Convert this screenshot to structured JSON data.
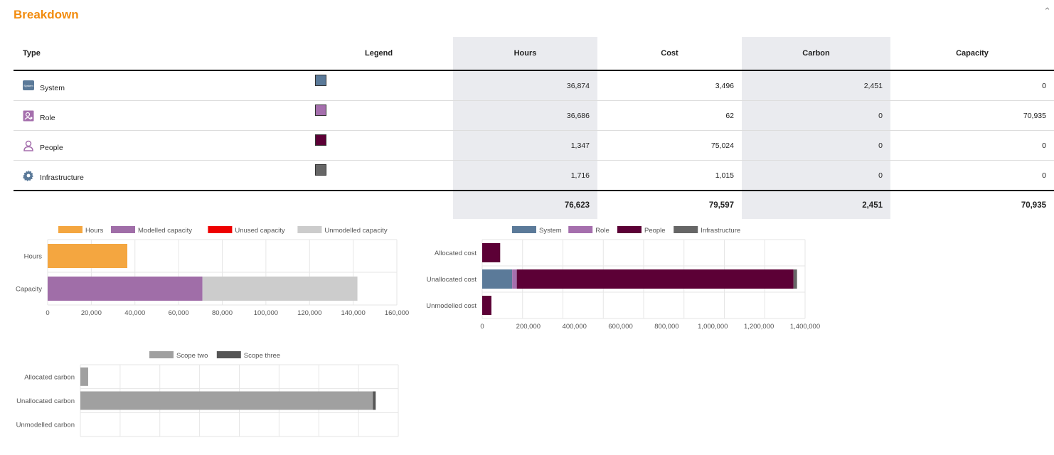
{
  "header": {
    "title": "Breakdown",
    "collapse_icon": "chevron-up-icon"
  },
  "table": {
    "columns": {
      "type": "Type",
      "legend": "Legend",
      "hours": "Hours",
      "cost": "Cost",
      "carbon": "Carbon",
      "capacity": "Capacity"
    },
    "rows": [
      {
        "type": "System",
        "icon": "system-icon",
        "color": "#5b7a99",
        "hours": "36,874",
        "cost": "3,496",
        "carbon": "2,451",
        "capacity": "0"
      },
      {
        "type": "Role",
        "icon": "role-icon",
        "color": "#a56fad",
        "hours": "36,686",
        "cost": "62",
        "carbon": "0",
        "capacity": "70,935"
      },
      {
        "type": "People",
        "icon": "person-icon",
        "color": "#5c0036",
        "hours": "1,347",
        "cost": "75,024",
        "carbon": "0",
        "capacity": "0"
      },
      {
        "type": "Infrastructure",
        "icon": "gear-icon",
        "color": "#666666",
        "hours": "1,716",
        "cost": "1,015",
        "carbon": "0",
        "capacity": "0"
      }
    ],
    "totals": {
      "hours": "76,623",
      "cost": "79,597",
      "carbon": "2,451",
      "capacity": "70,935"
    },
    "system_icon_text": "System"
  },
  "chart_data": [
    {
      "type": "bar",
      "orientation": "horizontal",
      "stacked": true,
      "categories": [
        "Hours",
        "Capacity"
      ],
      "series": [
        {
          "name": "Hours",
          "color": "#f4a640",
          "values": [
            36500,
            0
          ]
        },
        {
          "name": "Modelled capacity",
          "color": "#a06ea8",
          "values": [
            0,
            70935
          ]
        },
        {
          "name": "Unused capacity",
          "color": "#ee0000",
          "values": [
            0,
            0
          ]
        },
        {
          "name": "Unmodelled capacity",
          "color": "#cccccc",
          "values": [
            0,
            71000
          ]
        }
      ],
      "xlim": [
        0,
        160000
      ],
      "xticks": [
        0,
        20000,
        40000,
        60000,
        80000,
        100000,
        120000,
        140000,
        160000
      ],
      "xtick_labels": [
        "0",
        "20,000",
        "40,000",
        "60,000",
        "80,000",
        "100,000",
        "120,000",
        "140,000",
        "160,000"
      ],
      "legend": "top"
    },
    {
      "type": "bar",
      "orientation": "horizontal",
      "stacked": true,
      "categories": [
        "Allocated cost",
        "Unallocated cost",
        "Unmodelled cost"
      ],
      "series": [
        {
          "name": "System",
          "color": "#5b7a99",
          "values": [
            0,
            130000,
            0
          ]
        },
        {
          "name": "Role",
          "color": "#a56fad",
          "values": [
            0,
            20000,
            0
          ]
        },
        {
          "name": "People",
          "color": "#5c0036",
          "values": [
            78000,
            1200000,
            40000
          ]
        },
        {
          "name": "Infrastructure",
          "color": "#666666",
          "values": [
            0,
            15000,
            0
          ]
        }
      ],
      "xlim": [
        0,
        1400000
      ],
      "xticks": [
        0,
        200000,
        400000,
        600000,
        800000,
        1000000,
        1200000,
        1400000
      ],
      "xtick_labels": [
        "0",
        "200,000",
        "400,000",
        "600,000",
        "800,000",
        "1,000,000",
        "1,200,000",
        "1,400,000"
      ],
      "legend": "top"
    },
    {
      "type": "bar",
      "orientation": "horizontal",
      "stacked": true,
      "categories": [
        "Allocated carbon",
        "Unallocated carbon",
        "Unmodelled carbon"
      ],
      "series": [
        {
          "name": "Scope two",
          "color": "#a0a0a0",
          "values": [
            2451,
            92000,
            0
          ]
        },
        {
          "name": "Scope three",
          "color": "#555555",
          "values": [
            0,
            900,
            0
          ]
        }
      ],
      "xlim": [
        0,
        100000
      ],
      "legend": "top"
    }
  ]
}
